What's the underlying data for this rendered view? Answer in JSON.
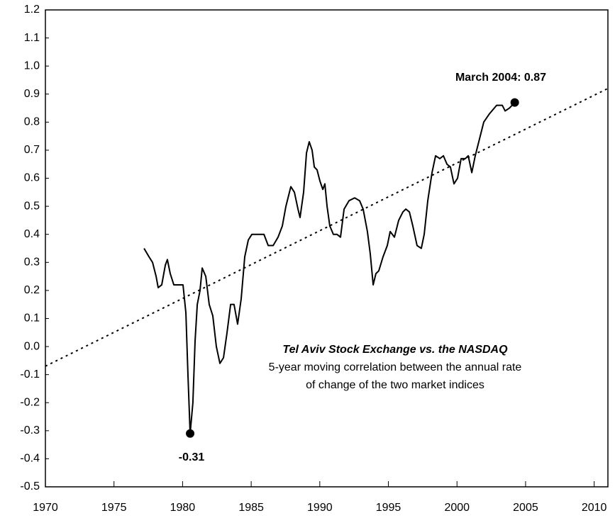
{
  "chart_data": {
    "type": "line",
    "annotations": {
      "min_label": "-0.31",
      "max_label": "March 2004: 0.87",
      "note_title": "Tel Aviv Stock Exchange vs. the NASDAQ",
      "note_line1": "5-year moving correlation between the annual rate",
      "note_line2": "of change of the two market indices"
    },
    "x": [
      1977.19,
      1977.55,
      1977.81,
      1978.07,
      1978.22,
      1978.48,
      1978.74,
      1978.89,
      1979.1,
      1979.36,
      1979.62,
      1979.88,
      1980.03,
      1980.24,
      1980.39,
      1980.55,
      1980.75,
      1980.91,
      1981.07,
      1981.27,
      1981.43,
      1981.69,
      1981.94,
      1982.2,
      1982.46,
      1982.72,
      1982.98,
      1983.24,
      1983.5,
      1983.75,
      1984.01,
      1984.27,
      1984.53,
      1984.79,
      1985.05,
      1985.56,
      1985.93,
      1986.24,
      1986.6,
      1986.96,
      1987.27,
      1987.53,
      1987.89,
      1988.15,
      1988.41,
      1988.56,
      1988.82,
      1989.03,
      1989.23,
      1989.44,
      1989.6,
      1989.8,
      1990.01,
      1990.22,
      1990.37,
      1990.53,
      1990.73,
      1990.99,
      1991.25,
      1991.51,
      1991.77,
      1992.13,
      1992.54,
      1992.9,
      1993.16,
      1993.47,
      1993.68,
      1993.89,
      1994.09,
      1994.3,
      1994.61,
      1994.92,
      1995.13,
      1995.44,
      1995.75,
      1996.06,
      1996.27,
      1996.53,
      1996.78,
      1997.09,
      1997.4,
      1997.61,
      1997.87,
      1998.18,
      1998.44,
      1998.75,
      1999.01,
      1999.27,
      1999.52,
      1999.78,
      2000.04,
      2000.3,
      2000.61,
      2000.82,
      2001.08,
      2001.33,
      2001.64,
      2001.95,
      2002.37,
      2002.89,
      2003.3,
      2003.51,
      2003.82,
      2004.21
    ],
    "series": [
      {
        "color": "#000000",
        "values": [
          0.35,
          0.32,
          0.3,
          0.25,
          0.21,
          0.22,
          0.29,
          0.31,
          0.26,
          0.22,
          0.22,
          0.22,
          0.22,
          0.12,
          -0.1,
          -0.31,
          -0.2,
          0.02,
          0.15,
          0.2,
          0.28,
          0.25,
          0.15,
          0.11,
          0.0,
          -0.06,
          -0.04,
          0.05,
          0.15,
          0.15,
          0.08,
          0.17,
          0.32,
          0.38,
          0.4,
          0.4,
          0.4,
          0.36,
          0.36,
          0.39,
          0.43,
          0.5,
          0.57,
          0.55,
          0.49,
          0.46,
          0.55,
          0.69,
          0.73,
          0.7,
          0.64,
          0.63,
          0.59,
          0.56,
          0.58,
          0.5,
          0.43,
          0.4,
          0.4,
          0.39,
          0.49,
          0.52,
          0.53,
          0.52,
          0.49,
          0.41,
          0.33,
          0.22,
          0.26,
          0.27,
          0.32,
          0.36,
          0.41,
          0.39,
          0.45,
          0.48,
          0.49,
          0.48,
          0.43,
          0.36,
          0.35,
          0.4,
          0.52,
          0.62,
          0.68,
          0.67,
          0.68,
          0.65,
          0.64,
          0.58,
          0.6,
          0.67,
          0.67,
          0.68,
          0.62,
          0.68,
          0.74,
          0.8,
          0.83,
          0.86,
          0.86,
          0.84,
          0.85,
          0.87
        ]
      }
    ],
    "highlight_points": [
      15,
      103
    ],
    "trend": {
      "x": [
        1970,
        2011
      ],
      "values": [
        -0.07,
        0.92
      ]
    },
    "xlim": [
      1970,
      2011
    ],
    "ylim": [
      -0.5,
      1.2
    ],
    "xticks": [
      1970,
      1975,
      1980,
      1985,
      1990,
      1995,
      2000,
      2005,
      2010
    ],
    "yticks": [
      {
        "value": -0.5,
        "label": "-0.5"
      },
      {
        "value": -0.4,
        "label": "-0.4"
      },
      {
        "value": -0.3,
        "label": "-0.3"
      },
      {
        "value": -0.2,
        "label": "-0.2"
      },
      {
        "value": -0.1,
        "label": "-0.1"
      },
      {
        "value": 0.0,
        "label": "0.0"
      },
      {
        "value": 0.1,
        "label": "0.1"
      },
      {
        "value": 0.2,
        "label": "0.2"
      },
      {
        "value": 0.3,
        "label": "0.3"
      },
      {
        "value": 0.4,
        "label": "0.4"
      },
      {
        "value": 0.5,
        "label": "0.5"
      },
      {
        "value": 0.6,
        "label": "0.6"
      },
      {
        "value": 0.7,
        "label": "0.7"
      },
      {
        "value": 0.8,
        "label": "0.8"
      },
      {
        "value": 0.9,
        "label": "0.9"
      },
      {
        "value": 1.0,
        "label": "1.0"
      },
      {
        "value": 1.1,
        "label": "1.1"
      },
      {
        "value": 1.2,
        "label": "1.2"
      }
    ]
  }
}
